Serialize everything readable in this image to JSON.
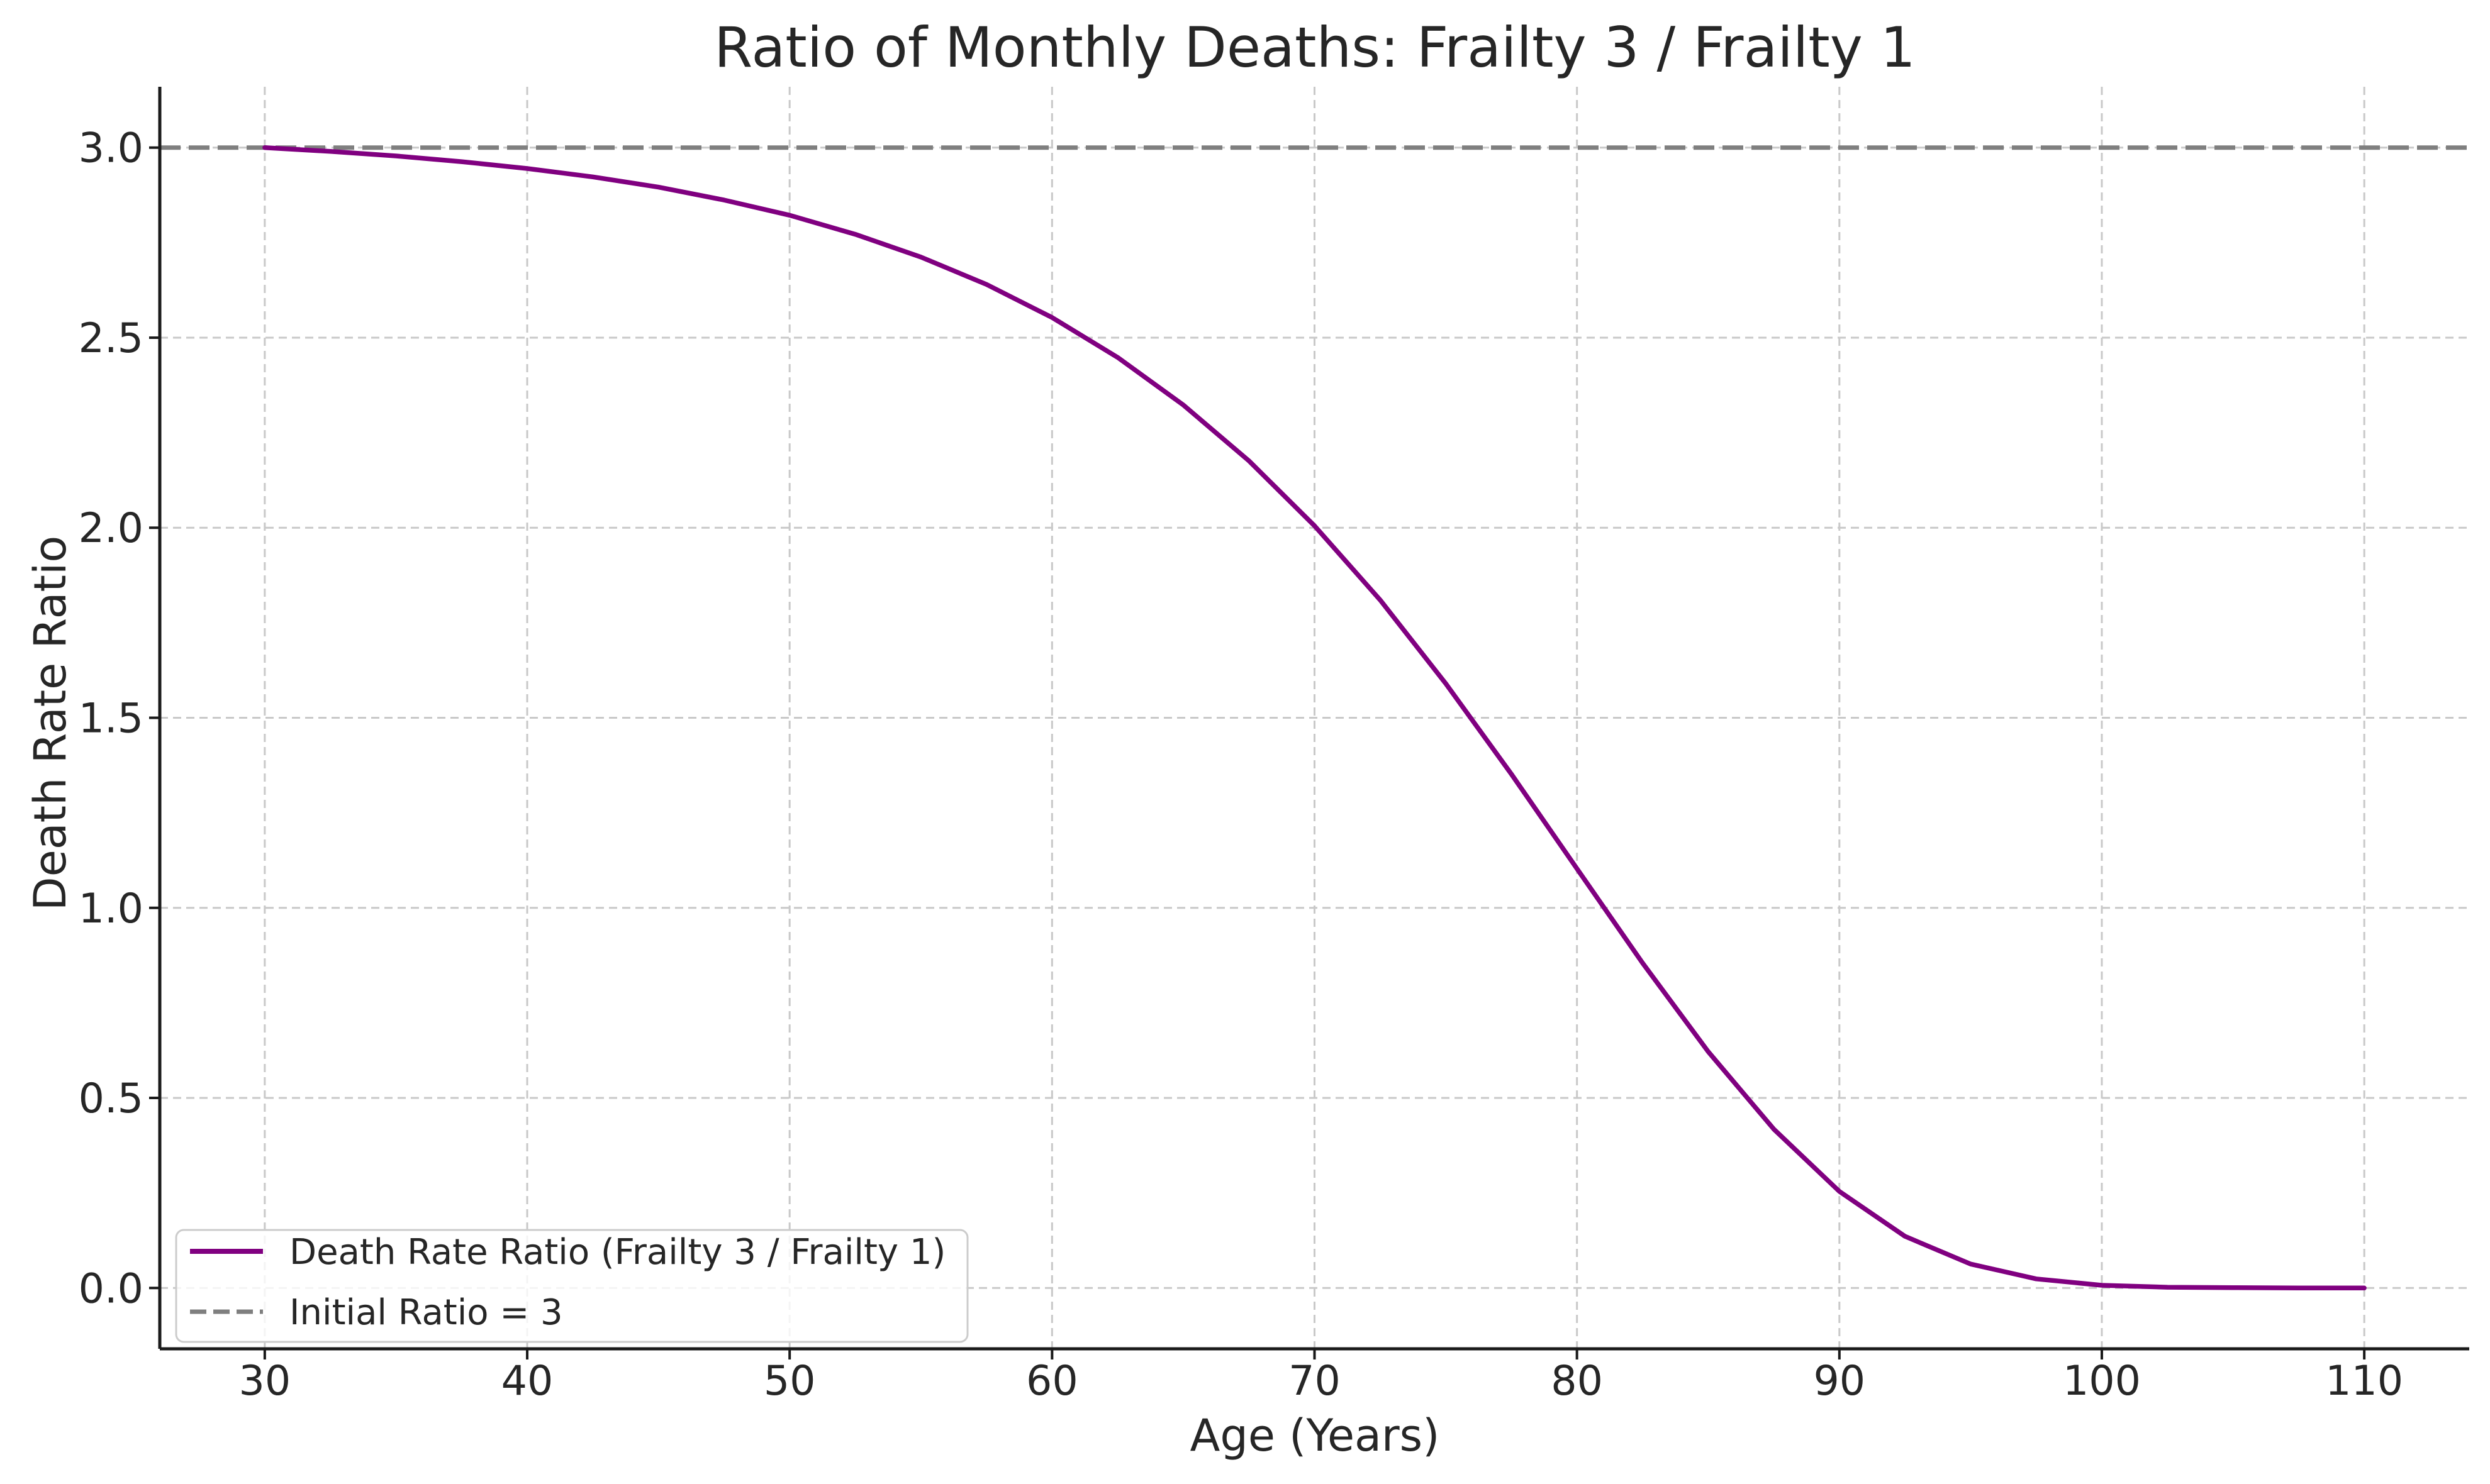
{
  "chart_data": {
    "type": "line",
    "title": "Ratio of Monthly Deaths: Frailty 3 / Frailty 1",
    "xlabel": "Age (Years)",
    "ylabel": "Death Rate Ratio",
    "xlim": [
      26,
      114
    ],
    "ylim": [
      -0.16,
      3.16
    ],
    "xticks": [
      30,
      40,
      50,
      60,
      70,
      80,
      90,
      100,
      110
    ],
    "xtick_labels": [
      "30",
      "40",
      "50",
      "60",
      "70",
      "80",
      "90",
      "100",
      "110"
    ],
    "yticks": [
      0.0,
      0.5,
      1.0,
      1.5,
      2.0,
      2.5,
      3.0
    ],
    "ytick_labels": [
      "0.0",
      "0.5",
      "1.0",
      "1.5",
      "2.0",
      "2.5",
      "3.0"
    ],
    "grid": true,
    "legend_position": "lower left",
    "colors": {
      "background": "#ffffff",
      "text": "#262626",
      "spine": "#1a1a1a",
      "grid": "#c9c9c9",
      "legend_border": "#cccccc"
    },
    "series": [
      {
        "name": "Death Rate Ratio (Frailty 3 / Frailty 1)",
        "color": "#800080",
        "style": "solid",
        "x": [
          30,
          32.5,
          35,
          37.5,
          40,
          42.5,
          45,
          47.5,
          50,
          52.5,
          55,
          57.5,
          60,
          62.5,
          65,
          67.5,
          70,
          72.5,
          75,
          77.5,
          80,
          82.5,
          85,
          87.5,
          90,
          92.5,
          95,
          97.5,
          100,
          102.5,
          105,
          107.5,
          110
        ],
        "y": [
          3.0,
          2.99,
          2.978,
          2.963,
          2.945,
          2.923,
          2.896,
          2.862,
          2.822,
          2.772,
          2.712,
          2.64,
          2.553,
          2.448,
          2.323,
          2.176,
          2.005,
          1.81,
          1.59,
          1.352,
          1.103,
          0.855,
          0.622,
          0.418,
          0.254,
          0.136,
          0.063,
          0.024,
          0.007,
          0.002,
          0.001,
          0.0,
          0.0
        ]
      },
      {
        "name": "Initial Ratio = 3",
        "color": "#7f7f7f",
        "style": "dashed",
        "y_const": 3.0
      }
    ]
  }
}
